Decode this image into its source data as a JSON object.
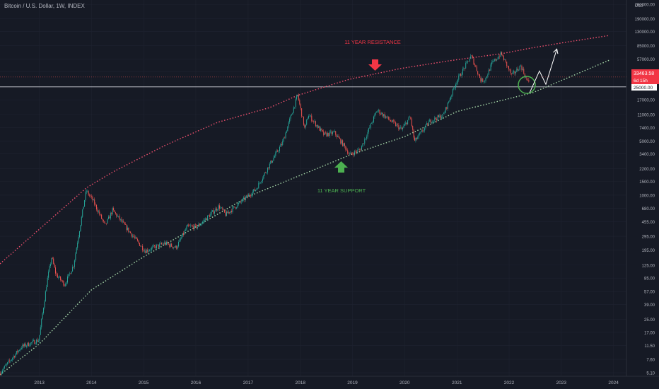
{
  "header": {
    "symbol_title": "Bitcoin / U.S. Dollar, 1W, INDEX"
  },
  "colors": {
    "background": "#161a25",
    "up": "#26a69a",
    "down": "#ef5350",
    "resistance": "#f0506e",
    "support": "#a5d6a7",
    "grid": "#1f2330",
    "axis_text": "#b2b5be"
  },
  "chart_data": {
    "type": "candlestick",
    "log_scale": true,
    "currency_label": "USD",
    "y_ticks": [
      "290000.00",
      "190000.00",
      "130000.00",
      "85000.00",
      "57000.00",
      "39000.00",
      "25000.00",
      "17000.00",
      "11000.00",
      "7400.00",
      "5000.00",
      "3400.00",
      "2200.00",
      "1500.00",
      "1000.00",
      "680.00",
      "455.00",
      "295.00",
      "195.00",
      "125.00",
      "85.00",
      "57.00",
      "39.00",
      "25.00",
      "17.00",
      "11.50",
      "7.60",
      "5.10"
    ],
    "x_ticks": [
      "2013",
      "2014",
      "2015",
      "2016",
      "2017",
      "2018",
      "2019",
      "2020",
      "2021",
      "2022",
      "2023",
      "2024"
    ],
    "ylim": [
      4.6,
      330000
    ],
    "xlim": [
      "2012-04-01",
      "2024-04-01"
    ],
    "price_path": [
      [
        "2012-04-01",
        5.0
      ],
      [
        "2012-09-01",
        11
      ],
      [
        "2013-01-01",
        13.5
      ],
      [
        "2013-03-01",
        80
      ],
      [
        "2013-04-01",
        160
      ],
      [
        "2013-05-01",
        95
      ],
      [
        "2013-07-01",
        70
      ],
      [
        "2013-09-01",
        125
      ],
      [
        "2013-11-28",
        1150
      ],
      [
        "2014-01-15",
        850
      ],
      [
        "2014-04-10",
        400
      ],
      [
        "2014-06-01",
        640
      ],
      [
        "2014-10-01",
        330
      ],
      [
        "2015-01-15",
        190
      ],
      [
        "2015-06-01",
        240
      ],
      [
        "2015-08-20",
        210
      ],
      [
        "2015-11-05",
        390
      ],
      [
        "2016-01-15",
        390
      ],
      [
        "2016-06-15",
        720
      ],
      [
        "2016-08-01",
        560
      ],
      [
        "2016-12-31",
        960
      ],
      [
        "2017-03-01",
        1200
      ],
      [
        "2017-06-15",
        2700
      ],
      [
        "2017-09-01",
        4700
      ],
      [
        "2017-12-17",
        19500
      ],
      [
        "2018-02-06",
        7000
      ],
      [
        "2018-03-01",
        11000
      ],
      [
        "2018-06-20",
        6000
      ],
      [
        "2018-09-01",
        6400
      ],
      [
        "2018-11-20",
        4000
      ],
      [
        "2018-12-15",
        3300
      ],
      [
        "2019-03-01",
        3900
      ],
      [
        "2019-06-26",
        12500
      ],
      [
        "2019-09-01",
        10000
      ],
      [
        "2019-12-15",
        7000
      ],
      [
        "2020-02-13",
        10300
      ],
      [
        "2020-03-13",
        4900
      ],
      [
        "2020-07-01",
        9100
      ],
      [
        "2020-10-01",
        10700
      ],
      [
        "2020-12-31",
        29000
      ],
      [
        "2021-04-14",
        63000
      ],
      [
        "2021-06-22",
        30000
      ],
      [
        "2021-07-20",
        31000
      ],
      [
        "2021-09-07",
        50000
      ],
      [
        "2021-11-10",
        67000
      ],
      [
        "2022-01-24",
        35000
      ],
      [
        "2022-03-28",
        47000
      ],
      [
        "2022-05-12",
        29000
      ],
      [
        "2022-05-20",
        29500
      ]
    ],
    "last_price": "33463.58",
    "countdown": "6d 15h",
    "horizontal_level": "25000.00",
    "annotations": {
      "resistance_label": "11 YEAR RESISTANCE",
      "support_label": "11 YEAR SUPPORT"
    },
    "resistance_curve": [
      [
        "2012-04-01",
        130
      ],
      [
        "2013-11-28",
        1250
      ],
      [
        "2014-06-01",
        2000
      ],
      [
        "2015-06-01",
        4400
      ],
      [
        "2016-06-01",
        8700
      ],
      [
        "2017-06-01",
        13500
      ],
      [
        "2017-12-17",
        19500
      ],
      [
        "2018-12-01",
        31000
      ],
      [
        "2019-12-01",
        43000
      ],
      [
        "2020-12-01",
        55000
      ],
      [
        "2021-11-10",
        67000
      ],
      [
        "2022-06-01",
        79000
      ],
      [
        "2023-01-01",
        92000
      ],
      [
        "2023-12-01",
        115000
      ]
    ],
    "support_curve": [
      [
        "2012-04-01",
        4.8
      ],
      [
        "2013-01-01",
        12
      ],
      [
        "2014-01-01",
        60
      ],
      [
        "2015-01-01",
        160
      ],
      [
        "2016-01-01",
        390
      ],
      [
        "2017-01-01",
        960
      ],
      [
        "2018-01-01",
        1800
      ],
      [
        "2018-12-15",
        3300
      ],
      [
        "2020-01-01",
        5700
      ],
      [
        "2021-01-01",
        12000
      ],
      [
        "2022-06-15",
        21000
      ],
      [
        "2023-12-01",
        55000
      ]
    ],
    "projection_path": [
      [
        "2022-05-25",
        21000
      ],
      [
        "2022-08-01",
        40000
      ],
      [
        "2022-09-15",
        27000
      ],
      [
        "2022-12-01",
        77000
      ]
    ]
  }
}
